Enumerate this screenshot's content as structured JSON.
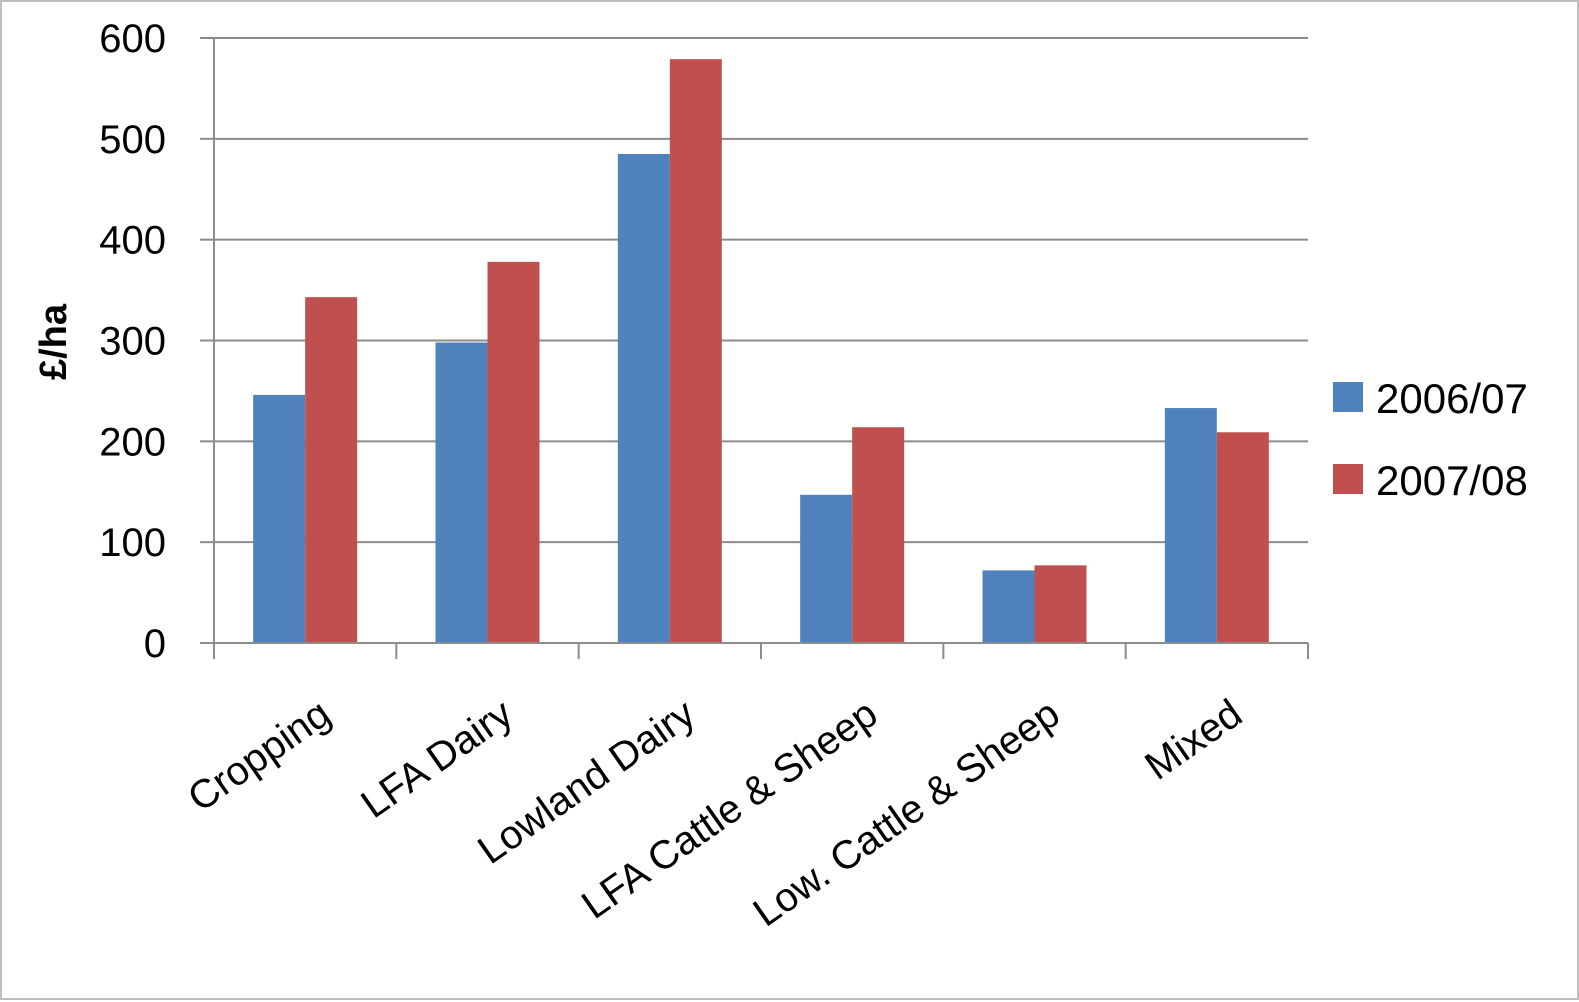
{
  "chart_data": {
    "type": "bar",
    "title": "",
    "xlabel": "",
    "ylabel": "£/ha",
    "ylim": [
      0,
      600
    ],
    "yticks": [
      0,
      100,
      200,
      300,
      400,
      500,
      600
    ],
    "grid": true,
    "legend_position": "right",
    "categories": [
      "Cropping",
      "LFA Dairy",
      "Lowland Dairy",
      "LFA Cattle & Sheep",
      "Low. Cattle & Sheep",
      "Mixed"
    ],
    "series": [
      {
        "name": "2006/07",
        "color": "#4F81BD",
        "values": [
          246,
          298,
          485,
          147,
          72,
          233
        ]
      },
      {
        "name": "2007/08",
        "color": "#C0504D",
        "values": [
          343,
          378,
          579,
          214,
          77,
          209
        ]
      }
    ]
  }
}
